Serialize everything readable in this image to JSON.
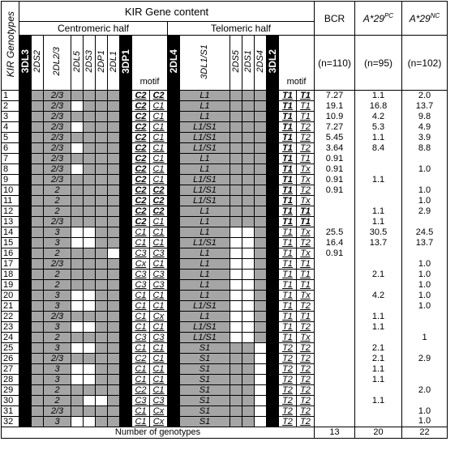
{
  "header": {
    "title": "KIR Gene content",
    "genotypes_label": "KIR Genotypes",
    "centromeric": "Centromeric half",
    "telomeric": "Telomeric half",
    "bcr": "BCR",
    "pc_base": "A*29",
    "pc_sup": "PC",
    "nc_base": "A*29",
    "nc_sup": "NC",
    "bcr_n": "(n=110)",
    "pc_n": "(n=95)",
    "nc_n": "(n=102)",
    "cols": {
      "c3dl3": "3DL3",
      "c2ds2": "2DS2",
      "c2dl23": "2DL2/3",
      "c2dl5": "2DL5",
      "c2ds3": "2DS3",
      "c2dp1": "2DP1",
      "c2dl1": "2DL1",
      "c3dp1": "3DP1",
      "motif": "motif",
      "c2dl4": "2DL4",
      "c3dl1s1": "3DL1/S1",
      "c2ds5": "2DS5",
      "c2ds1": "2DS1",
      "c2ds4": "2DS4",
      "c3dl2": "3DL2",
      "tmotif": "motif"
    }
  },
  "rows": [
    {
      "n": "1",
      "a": "g",
      "b": "g",
      "c": "2/3",
      "d": "g",
      "e": "g",
      "f": "g",
      "h": "g",
      "m1": "C2",
      "m2": "C2",
      "mb": "b",
      "t": "L1",
      "u": "g",
      "v": "g",
      "x": "g",
      "t1": "T1",
      "t2": "T1",
      "tb": "b",
      "bcr": "7.27",
      "pc": "1.1",
      "nc": "2.0"
    },
    {
      "n": "2",
      "a": "g",
      "b": "g",
      "c": "2/3",
      "d": "w",
      "e": "g",
      "f": "g",
      "h": "g",
      "m1": "C2",
      "m2": "C1",
      "mb": "b1",
      "t": "L1",
      "u": "g",
      "v": "g",
      "x": "g",
      "t1": "T1",
      "t2": "T1",
      "tb": "b1",
      "bcr": "19.1",
      "pc": "16.8",
      "nc": "13.7"
    },
    {
      "n": "3",
      "a": "g",
      "b": "g",
      "c": "2/3",
      "d": "g",
      "e": "g",
      "f": "g",
      "h": "g",
      "m1": "C2",
      "m2": "C1",
      "mb": "b1",
      "t": "L1",
      "u": "g",
      "v": "g",
      "x": "g",
      "t1": "T1",
      "t2": "T1",
      "tb": "b1",
      "bcr": "10.9",
      "pc": "4.2",
      "nc": "9.8"
    },
    {
      "n": "4",
      "a": "g",
      "b": "g",
      "c": "2/3",
      "d": "w",
      "e": "g",
      "f": "g",
      "h": "g",
      "m1": "C2",
      "m2": "C1",
      "mb": "b1",
      "t": "L1/S1",
      "u": "g",
      "v": "g",
      "x": "g",
      "t1": "T1",
      "t2": "T2",
      "tb": "b1",
      "bcr": "7.27",
      "pc": "5.3",
      "nc": "4.9"
    },
    {
      "n": "5",
      "a": "g",
      "b": "g",
      "c": "2/3",
      "d": "g",
      "e": "g",
      "f": "g",
      "h": "g",
      "m1": "C2",
      "m2": "C1",
      "mb": "b1",
      "t": "L1/S1",
      "u": "g",
      "v": "g",
      "x": "g",
      "t1": "T1",
      "t2": "T2",
      "tb": "b1",
      "bcr": "5.45",
      "pc": "1.1",
      "nc": "3.9"
    },
    {
      "n": "6",
      "a": "g",
      "b": "g",
      "c": "2/3",
      "d": "w",
      "e": "g",
      "f": "g",
      "h": "g",
      "m1": "C2",
      "m2": "C1",
      "mb": "b1",
      "t": "L1/S1",
      "u": "g",
      "v": "g",
      "x": "g",
      "t1": "T1",
      "t2": "T2",
      "tb": "b1",
      "bcr": "3.64",
      "pc": "8.4",
      "nc": "8.8"
    },
    {
      "n": "7",
      "a": "g",
      "b": "g",
      "c": "2/3",
      "d": "g",
      "e": "g",
      "f": "g",
      "h": "g",
      "m1": "C2",
      "m2": "C1",
      "mb": "b1",
      "t": "L1",
      "u": "g",
      "v": "g",
      "x": "g",
      "t1": "T1",
      "t2": "T1",
      "tb": "b1",
      "bcr": "0.91",
      "pc": "",
      "nc": ""
    },
    {
      "n": "8",
      "a": "g",
      "b": "g",
      "c": "2/3",
      "d": "w",
      "e": "g",
      "f": "g",
      "h": "g",
      "m1": "C2",
      "m2": "C1",
      "mb": "b1",
      "t": "L1",
      "u": "g",
      "v": "g",
      "x": "g",
      "t1": "T1",
      "t2": "Tx",
      "tb": "b1",
      "bcr": "0.91",
      "pc": "",
      "nc": "1.0"
    },
    {
      "n": "9",
      "a": "g",
      "b": "g",
      "c": "2/3",
      "d": "g",
      "e": "g",
      "f": "g",
      "h": "g",
      "m1": "C2",
      "m2": "C1",
      "mb": "b1",
      "t": "L1/S1",
      "u": "g",
      "v": "g",
      "x": "g",
      "t1": "T1",
      "t2": "Tx",
      "tb": "b1",
      "bcr": "0.91",
      "pc": "1.1",
      "nc": ""
    },
    {
      "n": "10",
      "a": "g",
      "b": "g",
      "c": "2",
      "d": "g",
      "e": "g",
      "f": "g",
      "h": "g",
      "m1": "C2",
      "m2": "C2",
      "mb": "b",
      "t": "L1/S1",
      "u": "g",
      "v": "g",
      "x": "g",
      "t1": "T1",
      "t2": "T2",
      "tb": "b1",
      "bcr": "0.91",
      "pc": "",
      "nc": "1.0"
    },
    {
      "n": "11",
      "a": "g",
      "b": "g",
      "c": "2",
      "d": "g",
      "e": "g",
      "f": "g",
      "h": "g",
      "m1": "C2",
      "m2": "C2",
      "mb": "b",
      "t": "L1/S1",
      "u": "g",
      "v": "g",
      "x": "g",
      "t1": "T1",
      "t2": "Tx",
      "tb": "b1",
      "bcr": "",
      "pc": "",
      "nc": "1.0"
    },
    {
      "n": "12",
      "a": "g",
      "b": "g",
      "c": "2",
      "d": "g",
      "e": "g",
      "f": "g",
      "h": "g",
      "m1": "C2",
      "m2": "C2",
      "mb": "b",
      "t": "L1",
      "u": "g",
      "v": "g",
      "x": "g",
      "t1": "T1",
      "t2": "T1",
      "tb": "b",
      "bcr": "",
      "pc": "1.1",
      "nc": "2.9"
    },
    {
      "n": "13",
      "a": "g",
      "b": "g",
      "c": "2/3",
      "d": "g",
      "e": "g",
      "f": "g",
      "h": "g",
      "m1": "C2",
      "m2": "C1",
      "mb": "b1",
      "t": "L1",
      "u": "g",
      "v": "g",
      "x": "g",
      "t1": "T1",
      "t2": "T1",
      "tb": "b",
      "bcr": "",
      "pc": "1.1",
      "nc": ""
    },
    {
      "n": "14",
      "a": "g",
      "b": "w",
      "c": "3",
      "d": "w",
      "e": "w",
      "f": "g",
      "h": "g",
      "m1": "C1",
      "m2": "C1",
      "mb": "",
      "t": "L1",
      "u": "w",
      "v": "w",
      "x": "g",
      "t1": "T1",
      "t2": "Tx",
      "tb": "",
      "bcr": "25.5",
      "pc": "30.5",
      "nc": "24.5"
    },
    {
      "n": "15",
      "a": "g",
      "b": "w",
      "c": "3",
      "d": "w",
      "e": "w",
      "f": "g",
      "h": "g",
      "m1": "C1",
      "m2": "C1",
      "mb": "",
      "t": "L1/S1",
      "u": "w",
      "v": "w",
      "x": "g",
      "t1": "T1",
      "t2": "T2",
      "tb": "",
      "bcr": "16.4",
      "pc": "13.7",
      "nc": "13.7"
    },
    {
      "n": "16",
      "a": "g",
      "b": "w",
      "c": "2",
      "d": "g",
      "e": "g",
      "f": "g",
      "h": "w",
      "m1": "C3",
      "m2": "C3",
      "mb": "",
      "t": "L1",
      "u": "w",
      "v": "w",
      "x": "g",
      "t1": "T1",
      "t2": "Tx",
      "tb": "",
      "bcr": "0.91",
      "pc": "",
      "nc": ""
    },
    {
      "n": "17",
      "a": "g",
      "b": "g",
      "c": "2/3",
      "d": "g",
      "e": "g",
      "f": "g",
      "h": "g",
      "m1": "Cx",
      "m2": "C1",
      "mb": "",
      "t": "L1",
      "u": "w",
      "v": "w",
      "x": "g",
      "t1": "T1",
      "t2": "T1",
      "tb": "",
      "bcr": "",
      "pc": "",
      "nc": "1.0"
    },
    {
      "n": "18",
      "a": "g",
      "b": "w",
      "c": "2",
      "d": "g",
      "e": "g",
      "f": "g",
      "h": "g",
      "m1": "C3",
      "m2": "C3",
      "mb": "",
      "t": "L1",
      "u": "w",
      "v": "w",
      "x": "g",
      "t1": "T1",
      "t2": "T1",
      "tb": "",
      "bcr": "",
      "pc": "2.1",
      "nc": "1.0"
    },
    {
      "n": "19",
      "a": "g",
      "b": "w",
      "c": "2",
      "d": "g",
      "e": "g",
      "f": "g",
      "h": "g",
      "m1": "C3",
      "m2": "C3",
      "mb": "",
      "t": "L1",
      "u": "w",
      "v": "w",
      "x": "g",
      "t1": "T1",
      "t2": "T1",
      "tb": "",
      "bcr": "",
      "pc": "",
      "nc": "1.0"
    },
    {
      "n": "20",
      "a": "g",
      "b": "w",
      "c": "3",
      "d": "w",
      "e": "w",
      "f": "g",
      "h": "g",
      "m1": "C1",
      "m2": "C1",
      "mb": "",
      "t": "L1",
      "u": "w",
      "v": "w",
      "x": "g",
      "t1": "T1",
      "t2": "Tx",
      "tb": "",
      "bcr": "",
      "pc": "4.2",
      "nc": "1.0"
    },
    {
      "n": "21",
      "a": "g",
      "b": "w",
      "c": "3",
      "d": "w",
      "e": "w",
      "f": "g",
      "h": "g",
      "m1": "C1",
      "m2": "C1",
      "mb": "",
      "t": "L1/S1",
      "u": "w",
      "v": "w",
      "x": "g",
      "t1": "T1",
      "t2": "T2",
      "tb": "",
      "bcr": "",
      "pc": "",
      "nc": "1.0"
    },
    {
      "n": "22",
      "a": "g",
      "b": "g",
      "c": "2/3",
      "d": "g",
      "e": "g",
      "f": "g",
      "h": "g",
      "m1": "C1",
      "m2": "Cx",
      "mb": "",
      "t": "L1",
      "u": "w",
      "v": "w",
      "x": "g",
      "t1": "T1",
      "t2": "T1",
      "tb": "",
      "bcr": "",
      "pc": "1.1",
      "nc": ""
    },
    {
      "n": "23",
      "a": "g",
      "b": "w",
      "c": "3",
      "d": "w",
      "e": "w",
      "f": "g",
      "h": "g",
      "m1": "C1",
      "m2": "C1",
      "mb": "",
      "t": "L1/S1",
      "u": "w",
      "v": "w",
      "x": "g",
      "t1": "T1",
      "t2": "T2",
      "tb": "",
      "bcr": "",
      "pc": "1.1",
      "nc": ""
    },
    {
      "n": "24",
      "a": "g",
      "b": "w",
      "c": "2",
      "d": "g",
      "e": "g",
      "f": "g",
      "h": "g",
      "m1": "C3",
      "m2": "C3",
      "mb": "",
      "t": "L1/S1",
      "u": "w",
      "v": "w",
      "x": "g",
      "t1": "T1",
      "t2": "Tx",
      "tb": "",
      "bcr": "",
      "pc": "",
      "nc": "1"
    },
    {
      "n": "25",
      "a": "g",
      "b": "w",
      "c": "3",
      "d": "w",
      "e": "w",
      "f": "g",
      "h": "g",
      "m1": "C1",
      "m2": "C1",
      "mb": "",
      "t": "S1",
      "u": "g",
      "v": "g",
      "x": "w",
      "t1": "T2",
      "t2": "T2",
      "tb": "",
      "bcr": "",
      "pc": "2.1",
      "nc": ""
    },
    {
      "n": "26",
      "a": "g",
      "b": "g",
      "c": "2/3",
      "d": "g",
      "e": "g",
      "f": "g",
      "h": "g",
      "m1": "C2",
      "m2": "C1",
      "mb": "",
      "t": "S1",
      "u": "g",
      "v": "g",
      "x": "w",
      "t1": "T2",
      "t2": "T2",
      "tb": "",
      "bcr": "",
      "pc": "2.1",
      "nc": "2.9"
    },
    {
      "n": "27",
      "a": "g",
      "b": "w",
      "c": "3",
      "d": "w",
      "e": "w",
      "f": "g",
      "h": "g",
      "m1": "C1",
      "m2": "C1",
      "mb": "",
      "t": "S1",
      "u": "g",
      "v": "g",
      "x": "w",
      "t1": "T2",
      "t2": "T2",
      "tb": "",
      "bcr": "",
      "pc": "1.1",
      "nc": ""
    },
    {
      "n": "28",
      "a": "g",
      "b": "w",
      "c": "3",
      "d": "w",
      "e": "w",
      "f": "g",
      "h": "g",
      "m1": "C1",
      "m2": "C1",
      "mb": "",
      "t": "S1",
      "u": "g",
      "v": "g",
      "x": "w",
      "t1": "T2",
      "t2": "T2",
      "tb": "",
      "bcr": "",
      "pc": "1.1",
      "nc": ""
    },
    {
      "n": "29",
      "a": "g",
      "b": "w",
      "c": "2",
      "d": "g",
      "e": "g",
      "f": "g",
      "h": "g",
      "m1": "C2",
      "m2": "C1",
      "mb": "",
      "t": "S1",
      "u": "g",
      "v": "g",
      "x": "w",
      "t1": "T2",
      "t2": "T2",
      "tb": "",
      "bcr": "",
      "pc": "",
      "nc": "2.0"
    },
    {
      "n": "30",
      "a": "g",
      "b": "w",
      "c": "2",
      "d": "g",
      "e": "w",
      "f": "w",
      "h": "g",
      "m1": "C3",
      "m2": "C3",
      "mb": "",
      "t": "S1",
      "u": "g",
      "v": "g",
      "x": "w",
      "t1": "T2",
      "t2": "T2",
      "tb": "",
      "bcr": "",
      "pc": "1.1",
      "nc": ""
    },
    {
      "n": "31",
      "a": "g",
      "b": "g",
      "c": "2/3",
      "d": "g",
      "e": "g",
      "f": "g",
      "h": "g",
      "m1": "C1",
      "m2": "Cx",
      "mb": "",
      "t": "S1",
      "u": "g",
      "v": "g",
      "x": "w",
      "t1": "T2",
      "t2": "T2",
      "tb": "",
      "bcr": "",
      "pc": "",
      "nc": "1.0"
    },
    {
      "n": "32",
      "a": "g",
      "b": "w",
      "c": "3",
      "d": "w",
      "e": "w",
      "f": "g",
      "h": "g",
      "m1": "C1",
      "m2": "Cx",
      "mb": "",
      "t": "S1",
      "u": "g",
      "v": "g",
      "x": "w",
      "t1": "T2",
      "t2": "T2",
      "tb": "",
      "bcr": "",
      "pc": "",
      "nc": "1.0"
    }
  ],
  "footer": {
    "label": "Number of genotypes",
    "bcr": "13",
    "pc": "20",
    "nc": "22"
  }
}
